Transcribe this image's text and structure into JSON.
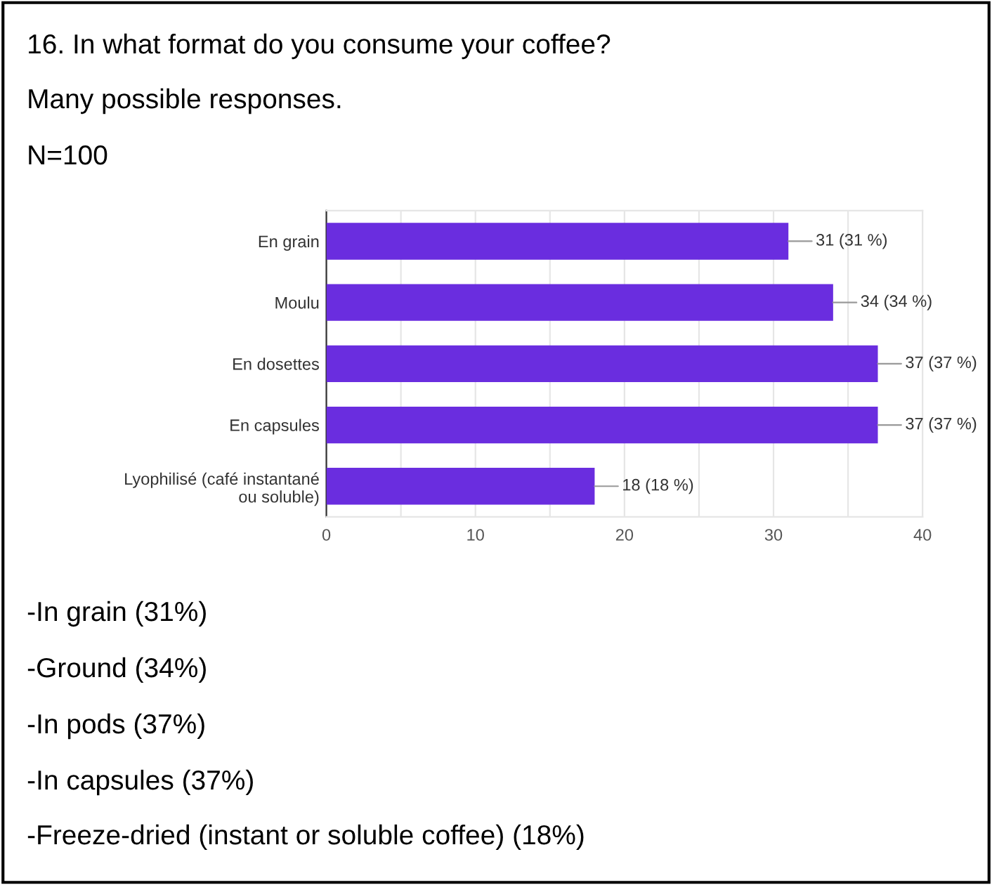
{
  "chart_data": {
    "type": "bar",
    "orientation": "horizontal",
    "title": "16. In what format do you consume your coffee?",
    "subtitle": "Many possible responses.",
    "categories": [
      "En grain",
      "Moulu",
      "En dosettes",
      "En capsules",
      "Lyophilisé (café instantané\nou soluble)"
    ],
    "values": [
      31,
      34,
      37,
      37,
      18
    ],
    "value_labels": [
      "31 (31 %)",
      "34 (34 %)",
      "37 (37 %)",
      "37 (37 %)",
      "18 (18 %)"
    ],
    "color": "#6a2ddf",
    "xlim": [
      0,
      40
    ],
    "xticks": [
      0,
      {
        "value": 5,
        "label": null
      },
      10,
      {
        "value": 15,
        "label": null
      },
      20,
      {
        "value": 25,
        "label": null
      },
      30,
      {
        "value": 35,
        "label": null
      },
      40
    ],
    "grid": "x",
    "annotations": [
      "N=100",
      "-In grain (31%)",
      "-Ground (34%)",
      "-In pods (37%)",
      "-In capsules (37%)",
      "-Freeze-dried (instant or soluble coffee) (18%)"
    ]
  }
}
